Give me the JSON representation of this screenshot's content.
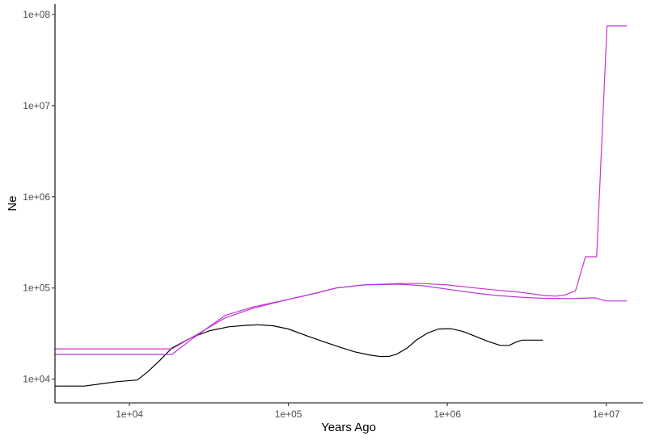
{
  "chart_data": {
    "type": "line",
    "title": "",
    "xlabel": "Years Ago",
    "ylabel": "Ne",
    "x_scale": "log",
    "y_scale": "log",
    "xlim": [
      3400,
      17000000
    ],
    "ylim": [
      5500,
      130000000
    ],
    "x_ticks": [
      {
        "value": 10000,
        "label": "1e+04"
      },
      {
        "value": 100000,
        "label": "1e+05"
      },
      {
        "value": 1000000,
        "label": "1e+06"
      },
      {
        "value": 10000000,
        "label": "1e+07"
      }
    ],
    "y_ticks": [
      {
        "value": 10000,
        "label": "1e+04"
      },
      {
        "value": 100000,
        "label": "1e+05"
      },
      {
        "value": 1000000,
        "label": "1e+06"
      },
      {
        "value": 10000000,
        "label": "1e+07"
      },
      {
        "value": 100000000,
        "label": "1e+08"
      }
    ],
    "grid": false,
    "legend": "none",
    "series": [
      {
        "color": "#000000",
        "points": [
          [
            3400,
            8400
          ],
          [
            5200,
            8400
          ],
          [
            8400,
            9400
          ],
          [
            11200,
            9800
          ],
          [
            13000,
            12000
          ],
          [
            15500,
            16000
          ],
          [
            18500,
            22000
          ],
          [
            25000,
            29000
          ],
          [
            32000,
            34000
          ],
          [
            42000,
            37500
          ],
          [
            55000,
            39000
          ],
          [
            65000,
            39500
          ],
          [
            80000,
            38500
          ],
          [
            100000,
            35500
          ],
          [
            130000,
            30000
          ],
          [
            170000,
            25500
          ],
          [
            210000,
            22500
          ],
          [
            260000,
            20000
          ],
          [
            320000,
            18500
          ],
          [
            380000,
            17700
          ],
          [
            430000,
            17800
          ],
          [
            480000,
            18800
          ],
          [
            560000,
            22000
          ],
          [
            640000,
            27000
          ],
          [
            750000,
            32000
          ],
          [
            880000,
            35500
          ],
          [
            1050000,
            35800
          ],
          [
            1250000,
            33500
          ],
          [
            1500000,
            29500
          ],
          [
            1800000,
            26000
          ],
          [
            2150000,
            23500
          ],
          [
            2450000,
            23500
          ],
          [
            2700000,
            25500
          ],
          [
            2950000,
            26800
          ],
          [
            3400000,
            26800
          ],
          [
            4000000,
            26800
          ]
        ]
      },
      {
        "color": "#cc33cc",
        "points": [
          [
            3400,
            21500
          ],
          [
            18500,
            21500
          ],
          [
            25000,
            29000
          ],
          [
            40000,
            47000
          ],
          [
            60000,
            60000
          ],
          [
            100000,
            75000
          ],
          [
            150000,
            88000
          ],
          [
            200000,
            100000
          ],
          [
            300000,
            108000
          ],
          [
            500000,
            112000
          ],
          [
            700000,
            112000
          ],
          [
            1000000,
            108000
          ],
          [
            1500000,
            100000
          ],
          [
            2000000,
            95000
          ],
          [
            3000000,
            89000
          ],
          [
            4000000,
            83000
          ],
          [
            4800000,
            81500
          ],
          [
            5500000,
            84000
          ],
          [
            6400000,
            93000
          ],
          [
            7400000,
            220000
          ],
          [
            8700000,
            220000
          ],
          [
            10100000,
            75000000
          ],
          [
            13500000,
            75000000
          ]
        ]
      },
      {
        "color": "#bb33dd",
        "points": [
          [
            3400,
            18700
          ],
          [
            18500,
            18700
          ],
          [
            25000,
            28000
          ],
          [
            40000,
            50000
          ],
          [
            60000,
            62000
          ],
          [
            100000,
            75000
          ],
          [
            150000,
            88000
          ],
          [
            200000,
            100000
          ],
          [
            300000,
            108000
          ],
          [
            500000,
            110000
          ],
          [
            700000,
            106000
          ],
          [
            1000000,
            97000
          ],
          [
            1500000,
            88000
          ],
          [
            2000000,
            83000
          ],
          [
            3000000,
            79000
          ],
          [
            4000000,
            77000
          ],
          [
            6000000,
            76500
          ],
          [
            8500000,
            78000
          ],
          [
            10000000,
            72000
          ],
          [
            13500000,
            72000
          ]
        ]
      }
    ]
  }
}
